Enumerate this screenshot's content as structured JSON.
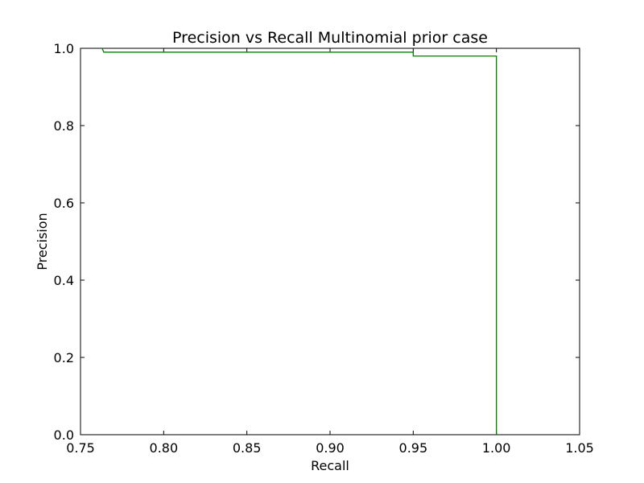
{
  "chart_data": {
    "type": "line",
    "title": "Precision vs Recall Multinomial prior case",
    "xlabel": "Recall",
    "ylabel": "Precision",
    "xlim": [
      0.75,
      1.05
    ],
    "ylim": [
      0.0,
      1.0
    ],
    "grid": false,
    "x_ticks": [
      0.75,
      0.8,
      0.85,
      0.9,
      0.95,
      1.0,
      1.05
    ],
    "x_tick_labels": [
      "0.75",
      "0.80",
      "0.85",
      "0.90",
      "0.95",
      "1.00",
      "1.05"
    ],
    "y_ticks": [
      0.0,
      0.2,
      0.4,
      0.6,
      0.8,
      1.0
    ],
    "y_tick_labels": [
      "0.0",
      "0.2",
      "0.4",
      "0.6",
      "0.8",
      "1.0"
    ],
    "series": [
      {
        "color": "#008000",
        "x": [
          0.763,
          0.764,
          0.95,
          0.95,
          1.0,
          1.0
        ],
        "y": [
          1.0,
          0.99,
          0.99,
          0.98,
          0.98,
          0.0
        ]
      }
    ]
  }
}
